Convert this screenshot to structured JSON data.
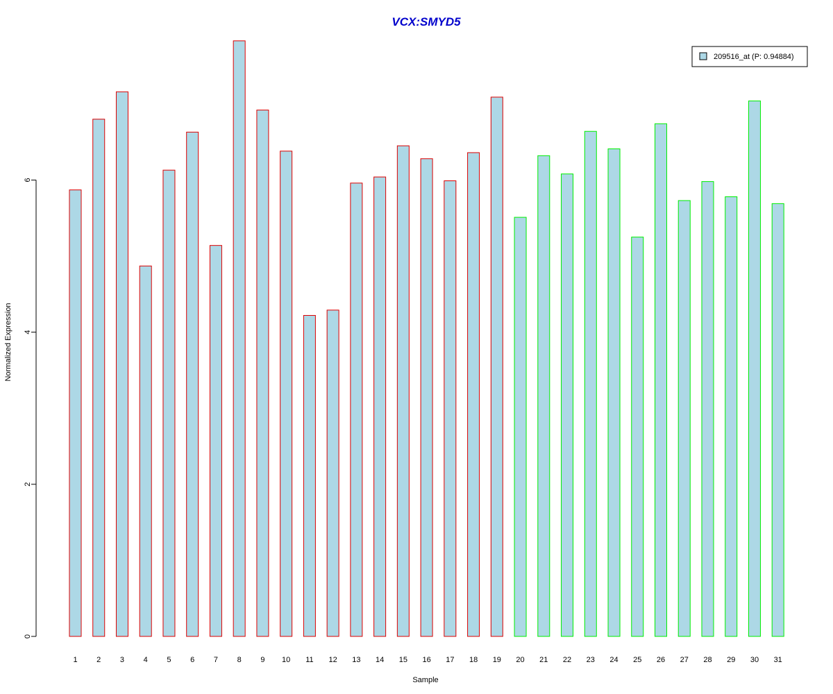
{
  "chart_data": {
    "type": "bar",
    "title": "VCX:SMYD5",
    "xlabel": "Sample",
    "ylabel": "Normalized Expression",
    "categories": [
      "1",
      "2",
      "3",
      "4",
      "5",
      "6",
      "7",
      "8",
      "9",
      "10",
      "11",
      "12",
      "13",
      "14",
      "15",
      "16",
      "17",
      "18",
      "19",
      "20",
      "21",
      "22",
      "23",
      "24",
      "25",
      "26",
      "27",
      "28",
      "29",
      "30",
      "31"
    ],
    "series": [
      {
        "name": "209516_at (P: 0.94884)",
        "values": [
          5.87,
          6.8,
          7.16,
          4.87,
          6.13,
          6.63,
          5.14,
          7.83,
          6.92,
          6.38,
          4.22,
          4.29,
          5.96,
          6.04,
          6.45,
          6.28,
          5.99,
          6.36,
          7.09,
          5.51,
          6.32,
          6.08,
          6.64,
          6.41,
          5.25,
          6.74,
          5.73,
          5.98,
          5.78,
          7.04,
          5.69
        ]
      }
    ],
    "group_colors": [
      "#dd0000",
      "#dd0000",
      "#dd0000",
      "#dd0000",
      "#dd0000",
      "#dd0000",
      "#dd0000",
      "#dd0000",
      "#dd0000",
      "#dd0000",
      "#dd0000",
      "#dd0000",
      "#dd0000",
      "#dd0000",
      "#dd0000",
      "#dd0000",
      "#dd0000",
      "#dd0000",
      "#dd0000",
      "#00ee00",
      "#00ee00",
      "#00ee00",
      "#00ee00",
      "#00ee00",
      "#00ee00",
      "#00ee00",
      "#00ee00",
      "#00ee00",
      "#00ee00",
      "#00ee00",
      "#00ee00"
    ],
    "yticks": [
      0,
      2,
      4,
      6
    ],
    "ylim": [
      0,
      8
    ],
    "bar_fill": "#add8e6",
    "title_color": "#0000cc",
    "grid": false,
    "legend_position": "top-right"
  }
}
